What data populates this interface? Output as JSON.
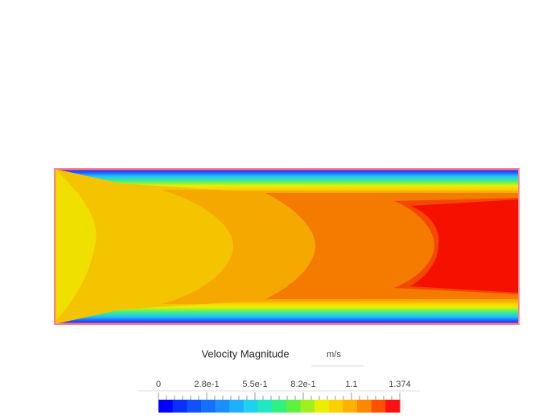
{
  "legend": {
    "title": "Velocity Magnitude",
    "unit": "m/s",
    "ticks": [
      "0",
      "2.8e-1",
      "5.5e-1",
      "8.2e-1",
      "1.1",
      "1.374"
    ],
    "colors": [
      "#0000ff",
      "#0a30ff",
      "#0f50ff",
      "#1470ff",
      "#1a90ff",
      "#1eb0ff",
      "#20d0f0",
      "#20e8c0",
      "#30f080",
      "#60f040",
      "#a0f020",
      "#e8f000",
      "#ffd000",
      "#ffb000",
      "#ff8800",
      "#ff5000",
      "#ff1010"
    ]
  }
}
